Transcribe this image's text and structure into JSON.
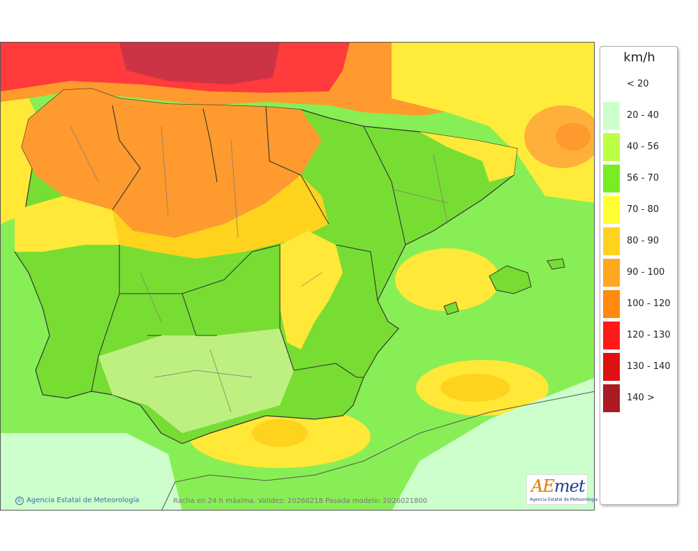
{
  "legend": {
    "unit": "km/h",
    "classes": [
      {
        "label": "< 20",
        "color": ""
      },
      {
        "label": "20 - 40",
        "color": "#ccffcc"
      },
      {
        "label": "40 - 56",
        "color": "#bbff44"
      },
      {
        "label": "56 - 70",
        "color": "#77ee22"
      },
      {
        "label": "70 - 80",
        "color": "#ffff33"
      },
      {
        "label": "80 - 90",
        "color": "#ffd21e"
      },
      {
        "label": "90 - 100",
        "color": "#ffa81e"
      },
      {
        "label": "100 - 120",
        "color": "#ff8a0e"
      },
      {
        "label": "120 - 130",
        "color": "#ff1a1a"
      },
      {
        "label": "130 - 140",
        "color": "#dd1111"
      },
      {
        "label": "140 >",
        "color": "#aa1a22"
      }
    ]
  },
  "footer": {
    "credit": "Agencia Estatal de Meteorología",
    "caption": "Racha en 24 h máxima. Validez: 20260218 Pasada modelo: 2026021800"
  },
  "logo": {
    "wordmark_a": "AE",
    "wordmark_b": "met",
    "subtitle": "Agencia Estatal de Meteorología"
  },
  "colors": {
    "sea_base": "#88ee55",
    "land_base": "#77dd33",
    "boundaries": "#333333"
  }
}
